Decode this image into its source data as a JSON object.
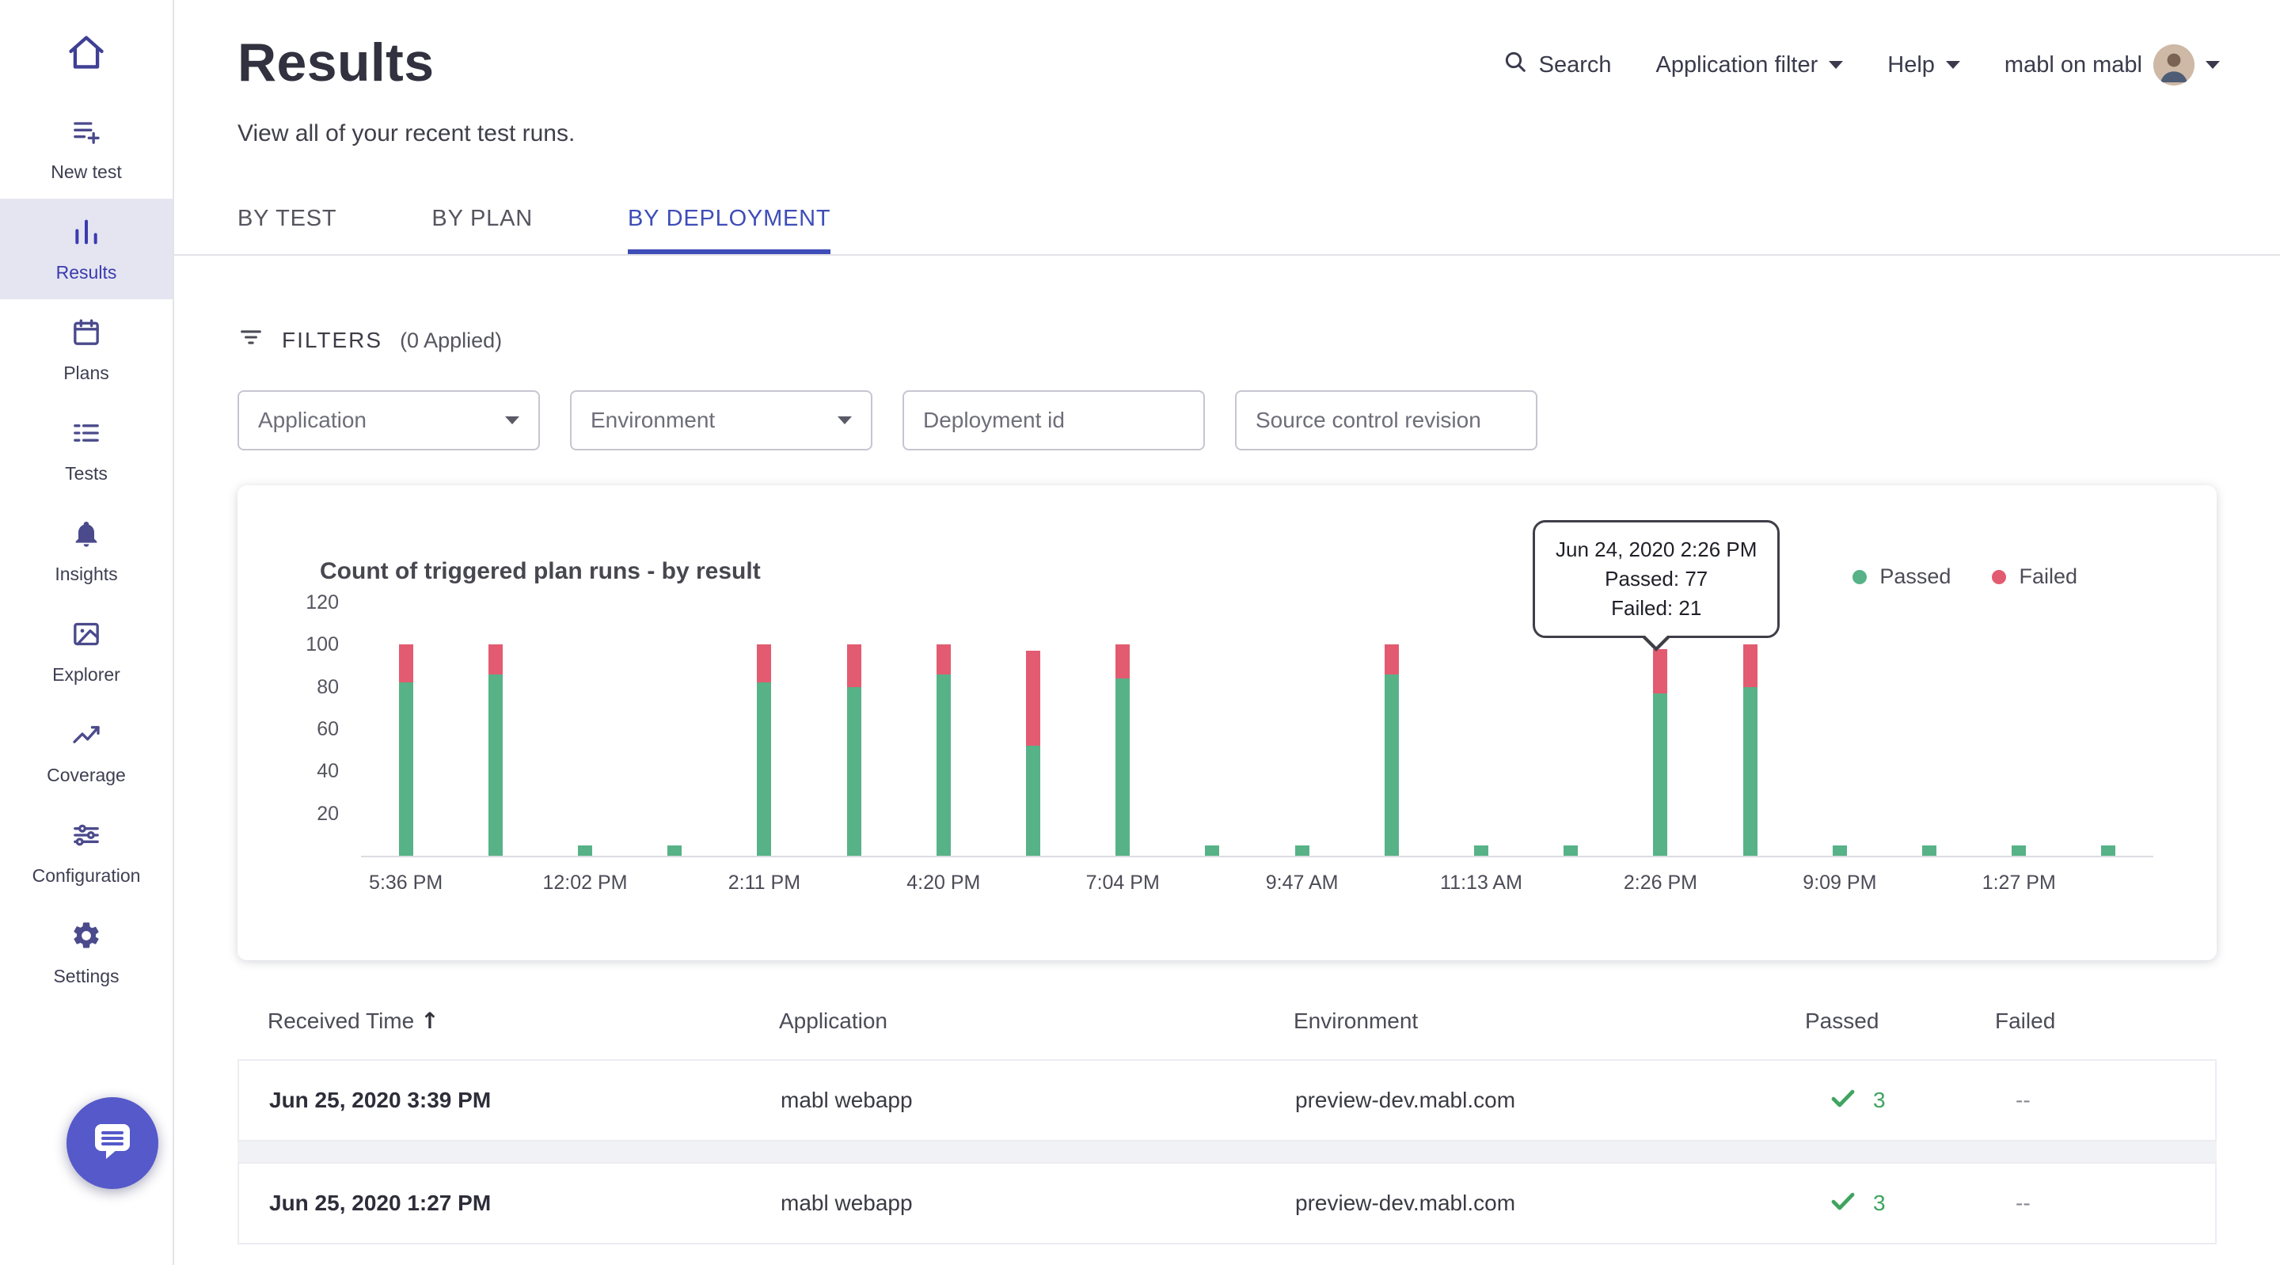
{
  "header": {
    "title": "Results",
    "subtitle": "View all of your recent test runs."
  },
  "topnav": {
    "search_label": "Search",
    "search_icon": "search-icon",
    "application_filter_label": "Application filter",
    "help_label": "Help",
    "account_label": "mabl on mabl",
    "account_avatar_icon": "user-avatar"
  },
  "sidebar": {
    "home_icon": "home-icon",
    "items": [
      {
        "label": "New test",
        "icon": "new-test-icon"
      },
      {
        "label": "Results",
        "icon": "results-icon"
      },
      {
        "label": "Plans",
        "icon": "plans-icon"
      },
      {
        "label": "Tests",
        "icon": "tests-icon"
      },
      {
        "label": "Insights",
        "icon": "insights-icon"
      },
      {
        "label": "Explorer",
        "icon": "explorer-icon"
      },
      {
        "label": "Coverage",
        "icon": "coverage-icon"
      },
      {
        "label": "Configuration",
        "icon": "configuration-icon"
      },
      {
        "label": "Settings",
        "icon": "settings-icon"
      }
    ],
    "chat_icon": "intercom-chat-icon"
  },
  "tabs": [
    {
      "label": "BY TEST",
      "active": false
    },
    {
      "label": "BY PLAN",
      "active": false
    },
    {
      "label": "BY DEPLOYMENT",
      "active": true
    }
  ],
  "filters": {
    "icon": "filter-icon",
    "label": "FILTERS",
    "applied": "(0 Applied)",
    "application_placeholder": "Application",
    "environment_placeholder": "Environment",
    "deployment_id_placeholder": "Deployment id",
    "source_control_placeholder": "Source control revision"
  },
  "chart_data": {
    "type": "bar",
    "stacked": true,
    "title": "Count of triggered plan runs - by result",
    "categories": [
      "5:36 PM",
      "",
      "12:02 PM",
      "",
      "2:11 PM",
      "",
      "4:20 PM",
      "",
      "7:04 PM",
      "",
      "9:47 AM",
      "",
      "11:13 AM",
      "",
      "2:26 PM",
      "",
      "9:09 PM",
      "",
      "1:27 PM",
      ""
    ],
    "series": [
      {
        "name": "Passed",
        "color": "#57b287",
        "values": [
          82,
          86,
          5,
          5,
          82,
          80,
          86,
          52,
          84,
          5,
          5,
          86,
          5,
          5,
          77,
          80,
          5,
          5,
          5,
          5
        ]
      },
      {
        "name": "Failed",
        "color": "#e35b70",
        "values": [
          18,
          14,
          0,
          0,
          18,
          20,
          14,
          45,
          16,
          0,
          0,
          14,
          0,
          0,
          21,
          20,
          0,
          0,
          0,
          0
        ]
      }
    ],
    "ylim": [
      0,
      120
    ],
    "yticks": [
      120,
      100,
      80,
      60,
      40,
      20
    ],
    "grid": false,
    "legend_position": "top-right"
  },
  "chart": {
    "tooltip": {
      "title": "Jun 24, 2020 2:26 PM",
      "passed": "Passed: 77",
      "failed": "Failed: 21"
    }
  },
  "table": {
    "columns": {
      "received_time": "Received Time",
      "application": "Application",
      "environment": "Environment",
      "passed": "Passed",
      "failed": "Failed"
    },
    "sort_icon": "sort-ascending-icon",
    "check_icon": "check-icon",
    "rows": [
      {
        "received_time": "Jun 25, 2020 3:39 PM",
        "application": "mabl webapp",
        "environment": "preview-dev.mabl.com",
        "passed": "3",
        "failed": "--"
      },
      {
        "received_time": "Jun 25, 2020 1:27 PM",
        "application": "mabl webapp",
        "environment": "preview-dev.mabl.com",
        "passed": "3",
        "failed": "--"
      }
    ]
  },
  "colors": {
    "accent_indigo": "#3e4db8",
    "active_item_bg": "#e5e5f2",
    "passed_green": "#57b287",
    "failed_red": "#e35b70",
    "check_green": "#3fa45f",
    "intercom_purple": "#5559c9"
  }
}
